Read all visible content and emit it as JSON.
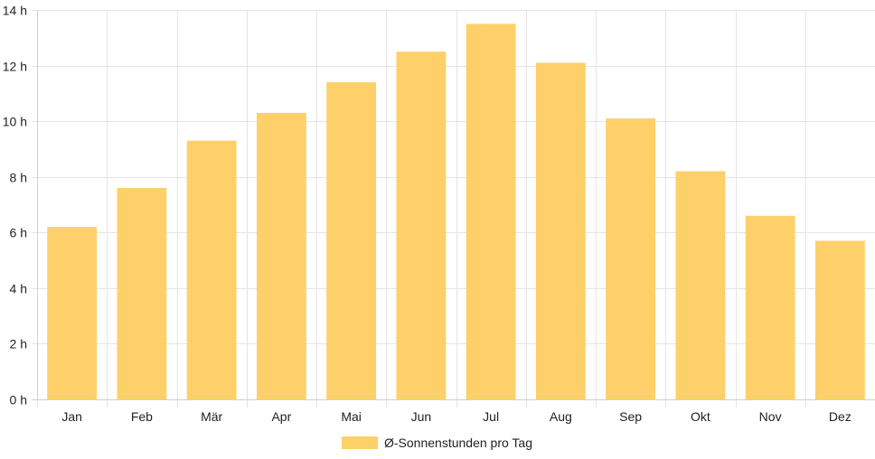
{
  "chart_data": {
    "type": "bar",
    "categories": [
      "Jan",
      "Feb",
      "Mär",
      "Apr",
      "Mai",
      "Jun",
      "Jul",
      "Aug",
      "Sep",
      "Okt",
      "Nov",
      "Dez"
    ],
    "series": [
      {
        "name": "Ø-Sonnenstunden pro Tag",
        "values": [
          6.2,
          7.6,
          9.3,
          10.3,
          11.4,
          12.5,
          13.5,
          12.1,
          10.1,
          8.2,
          6.6,
          5.7
        ],
        "color": "#fdd06a"
      }
    ],
    "y_unit": " h",
    "ylim": [
      0,
      14
    ],
    "y_ticks": [
      0,
      2,
      4,
      6,
      8,
      10,
      12,
      14
    ],
    "grid": true,
    "legend_position": "bottom"
  }
}
